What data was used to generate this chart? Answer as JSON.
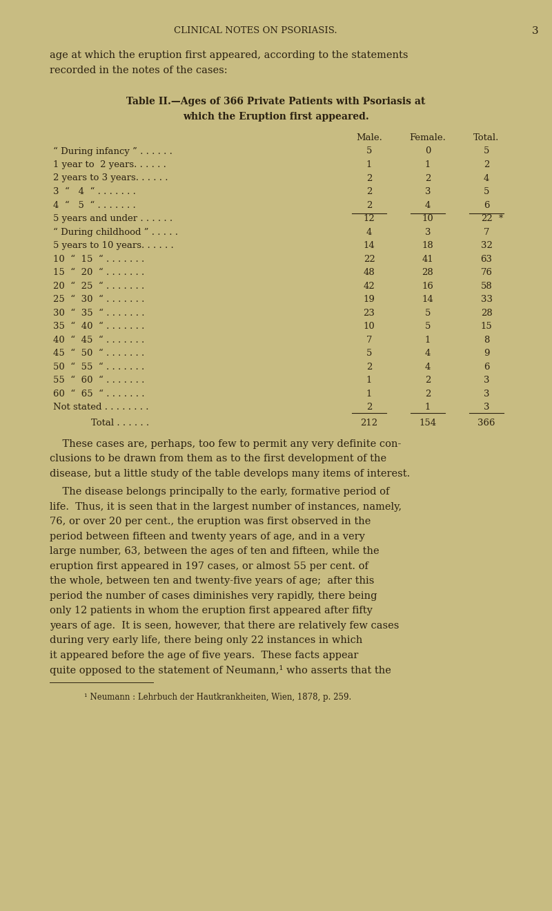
{
  "bg_color": "#c8bc82",
  "text_color": "#2a2010",
  "page_width": 8.0,
  "page_height": 13.19,
  "header": "CLINICAL NOTES ON PSORIASIS.",
  "page_number": "3",
  "intro_text": "age at which the eruption first appeared, according to the statements\nrecorded in the notes of the cases:",
  "table_title_line1": "Table II.—Ages of 366 Private Patients with Psoriasis at",
  "table_title_line2": "which the Eruption first appeared.",
  "col_headers": [
    "Male.",
    "Female.",
    "Total."
  ],
  "table_rows": [
    [
      "“ During infancy ” . . . . . .",
      "5",
      "0",
      "5"
    ],
    [
      "1 year to  2 years. . . . . .",
      "1",
      "1",
      "2"
    ],
    [
      "2 years to 3 years. . . . . .",
      "2",
      "2",
      "4"
    ],
    [
      "3  “   4  “ . . . . . . .",
      "2",
      "3",
      "5"
    ],
    [
      "4  “   5  “ . . . . . . .",
      "2",
      "4",
      "6"
    ],
    [
      "5 years and under . . . . . .",
      "12",
      "10",
      "22"
    ],
    [
      "“ During childhood ” . . . . .",
      "4",
      "3",
      "7"
    ],
    [
      "5 years to 10 years. . . . . .",
      "14",
      "18",
      "32"
    ],
    [
      "10  “  15  “ . . . . . . .",
      "22",
      "41",
      "63"
    ],
    [
      "15  “  20  “ . . . . . . .",
      "48",
      "28",
      "76"
    ],
    [
      "20  “  25  “ . . . . . . .",
      "42",
      "16",
      "58"
    ],
    [
      "25  “  30  “ . . . . . . .",
      "19",
      "14",
      "33"
    ],
    [
      "30  “  35  “ . . . . . . .",
      "23",
      "5",
      "28"
    ],
    [
      "35  “  40  “ . . . . . . .",
      "10",
      "5",
      "15"
    ],
    [
      "40  “  45  “ . . . . . . .",
      "7",
      "1",
      "8"
    ],
    [
      "45  “  50  “ . . . . . . .",
      "5",
      "4",
      "9"
    ],
    [
      "50  “  55  “ . . . . . . .",
      "2",
      "4",
      "6"
    ],
    [
      "55  “  60  “ . . . . . . .",
      "1",
      "2",
      "3"
    ],
    [
      "60  “  65  “ . . . . . . .",
      "1",
      "2",
      "3"
    ],
    [
      "Not stated . . . . . . . .",
      "2",
      "1",
      "3"
    ]
  ],
  "total_row": [
    "Total . . . . . .",
    "212",
    "154",
    "366"
  ],
  "asterisk_row_index": 5,
  "body_paragraphs": [
    "    These cases are, perhaps, too few to permit any very definite con-\nclusions to be drawn from them as to the first development of the\ndisease, but a little study of the table develops many items of interest.",
    "    The disease belongs principally to the early, formative period of\nlife.  Thus, it is seen that in the largest number of instances, namely,\n76, or over 20 per cent., the eruption was first observed in the\nperiod between fifteen and twenty years of age, and in a very\nlarge number, 63, between the ages of ten and fifteen, while the\neruption first appeared in 197 cases, or almost 55 per cent. of\nthe whole, between ten and twenty-five years of age;  after this\nperiod the number of cases diminishes very rapidly, there being\nonly 12 patients in whom the eruption first appeared after fifty\nyears of age.  It is seen, however, that there are relatively few cases\nduring very early life, there being only 22 instances in which\nit appeared before the age of five years.  These facts appear\nquite opposed to the statement of Neumann,¹ who asserts that the"
  ],
  "footnote": "¹ Neumann : Lehrbuch der Hautkrankheiten, Wien, 1878, p. 259."
}
